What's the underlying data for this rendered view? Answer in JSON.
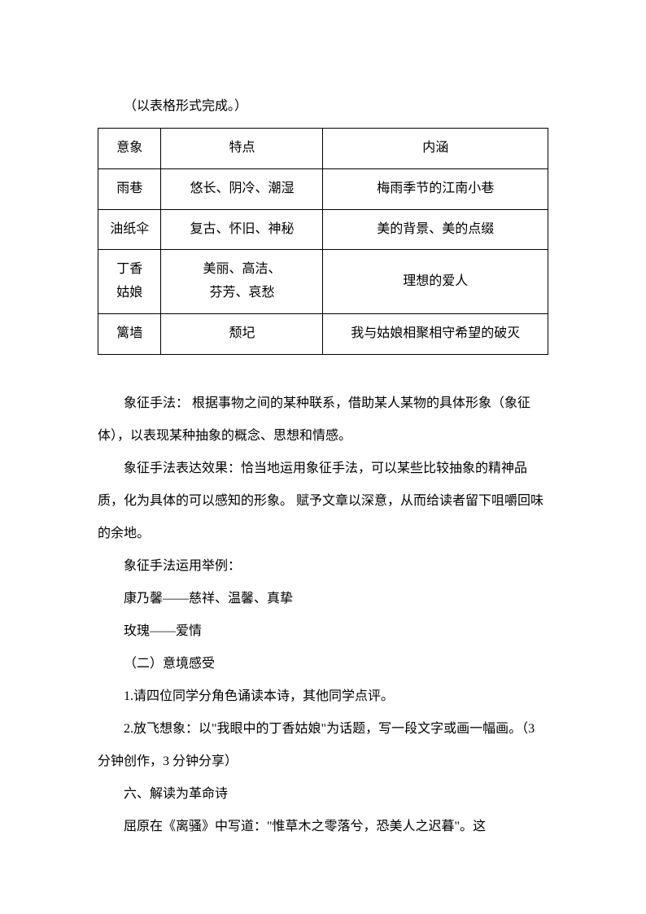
{
  "intro": "（以表格形式完成。）",
  "table": {
    "headers": {
      "col1": "意象",
      "col2": "特点",
      "col3": "内涵"
    },
    "rows": [
      {
        "col1": "雨巷",
        "col2": "悠长、阴冷、潮湿",
        "col3": "梅雨季节的江南小巷"
      },
      {
        "col1": "油纸伞",
        "col2": "复古、怀旧、神秘",
        "col3": "美的背景、美的点缀"
      },
      {
        "col1_line1": "丁香",
        "col1_line2": "姑娘",
        "col2_line1": "美丽、高洁、",
        "col2_line2": "芬芳、哀愁",
        "col3": "理想的爱人"
      },
      {
        "col1": "篱墙",
        "col2": "颓圮",
        "col3": "我与姑娘相聚相守希望的破灭"
      }
    ]
  },
  "paragraphs": [
    "象征手法： 根据事物之间的某种联系，借助某人某物的具体形象（象征体），以表现某种抽象的概念、思想和情感。",
    "象征手法表达效果：恰当地运用象征手法，可以某些比较抽象的精神品质，化为具体的可以感知的形象。 赋予文章以深意，从而给读者留下咀嚼回味的余地。",
    "象征手法运用举例：",
    "康乃馨——慈祥、温馨、真挚",
    "玫瑰——爱情",
    "（二）意境感受",
    "1.请四位同学分角色诵读本诗，其他同学点评。",
    "2.放飞想象：以\"我眼中的丁香姑娘\"为话题，写一段文字或画一幅画。（3 分钟创作，3 分钟分享）",
    "六、解读为革命诗",
    "屈原在《离骚》中写道：\"惟草木之零落兮，恐美人之迟暮\"。这"
  ]
}
